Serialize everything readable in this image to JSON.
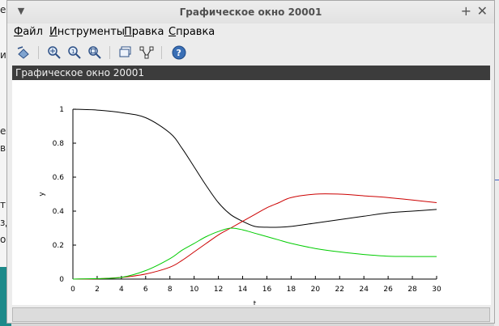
{
  "window": {
    "title": "Графическое окно 20001"
  },
  "menu": [
    {
      "label": "Файл",
      "key": "Ф"
    },
    {
      "label": "Инструменты",
      "key": "И"
    },
    {
      "label": "Правка",
      "key": "П"
    },
    {
      "label": "Справка",
      "key": "С"
    }
  ],
  "toolbar": [
    "rotate-icon",
    "zoom-area-icon",
    "zoom-reset-icon",
    "zoom-icon",
    "datatip-icon",
    "edit-curve-icon",
    "help-icon"
  ],
  "figure": {
    "header": "Графическое окно 20001"
  },
  "background_fragments": [
    "е",
    "ии",
    "ер",
    "в",
    "тв",
    "зд",
    "ок"
  ],
  "chart_data": {
    "type": "line",
    "xlabel": "t",
    "ylabel": "y",
    "xlim": [
      0,
      30
    ],
    "ylim": [
      0,
      1
    ],
    "xticks": [
      "0",
      "2",
      "4",
      "6",
      "8",
      "10",
      "12",
      "14",
      "16",
      "18",
      "20",
      "22",
      "24",
      "26",
      "28",
      "30"
    ],
    "yticks": [
      "0",
      "0.2",
      "0.4",
      "0.6",
      "0.8",
      "1"
    ],
    "grid": false,
    "x": [
      0,
      2,
      4,
      6,
      8,
      9,
      10,
      11,
      12,
      13,
      14,
      15,
      16,
      17,
      18,
      20,
      22,
      24,
      26,
      28,
      30
    ],
    "series": [
      {
        "color": "#000000",
        "values": [
          1.0,
          0.995,
          0.98,
          0.95,
          0.86,
          0.77,
          0.66,
          0.55,
          0.45,
          0.38,
          0.34,
          0.31,
          0.305,
          0.305,
          0.31,
          0.33,
          0.35,
          0.37,
          0.39,
          0.4,
          0.41
        ]
      },
      {
        "color": "#cc0000",
        "values": [
          0.0,
          0.002,
          0.01,
          0.03,
          0.07,
          0.11,
          0.16,
          0.21,
          0.26,
          0.3,
          0.34,
          0.38,
          0.42,
          0.45,
          0.48,
          0.5,
          0.5,
          0.49,
          0.48,
          0.465,
          0.45
        ]
      },
      {
        "color": "#00cc00",
        "values": [
          0.0,
          0.003,
          0.01,
          0.05,
          0.12,
          0.17,
          0.21,
          0.25,
          0.28,
          0.3,
          0.29,
          0.27,
          0.25,
          0.23,
          0.21,
          0.18,
          0.16,
          0.145,
          0.135,
          0.133,
          0.133
        ]
      }
    ]
  }
}
